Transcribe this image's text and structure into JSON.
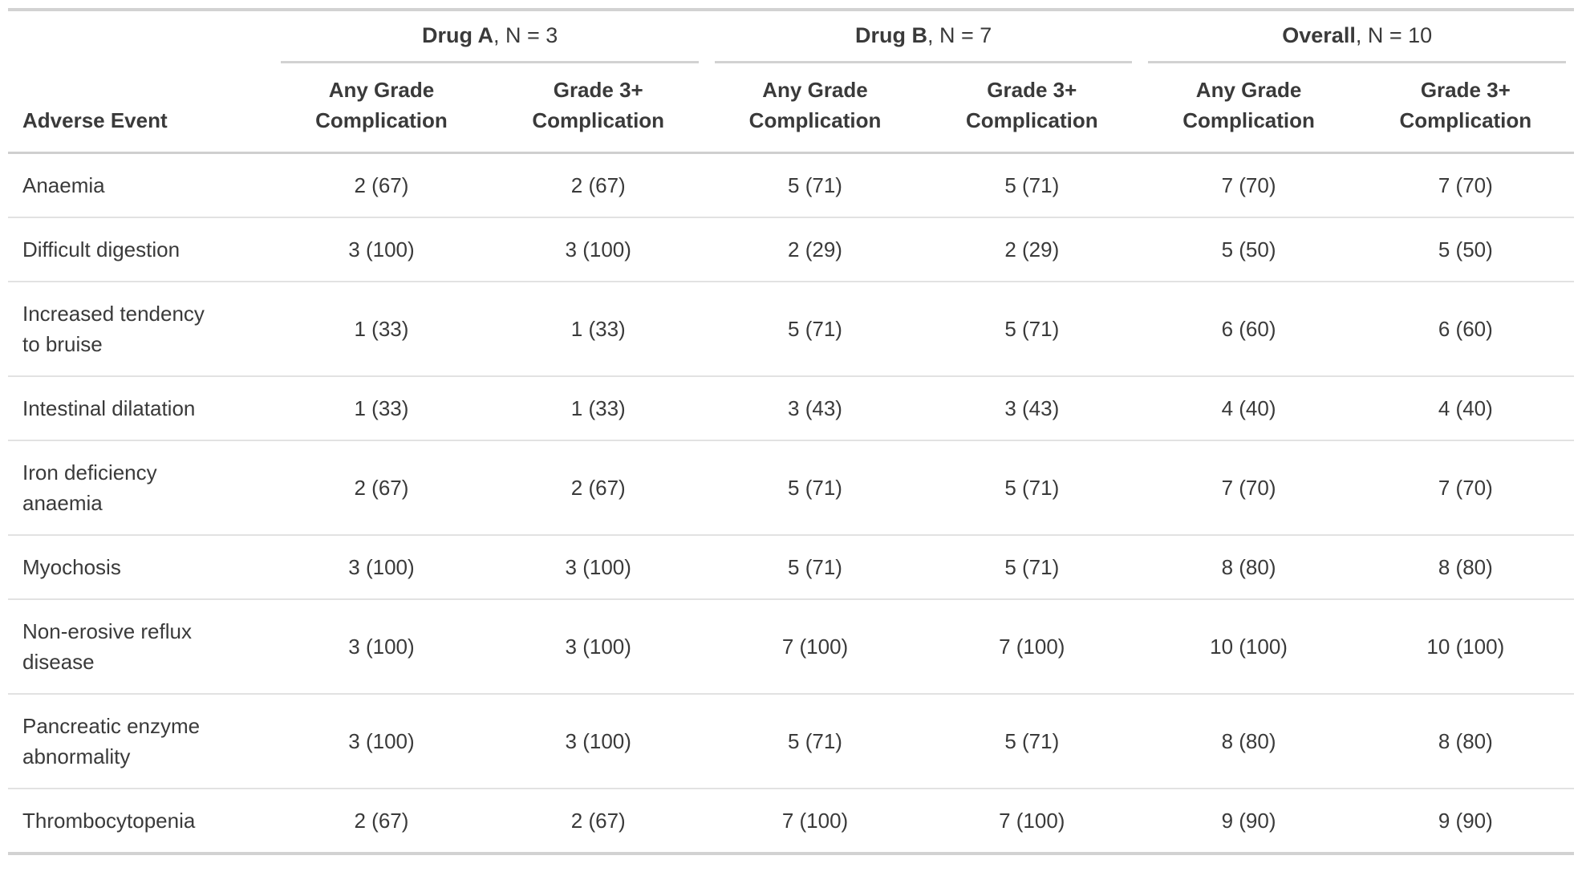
{
  "colors": {
    "background": "#ffffff",
    "text": "#3a3a3a",
    "border_strong": "#d2d2d2",
    "border_header": "#cfcfcf",
    "border_row": "#e2e2e2"
  },
  "chart_data": {
    "type": "table",
    "stub_header": "Adverse Event",
    "value_format": "n (%)",
    "spanners": [
      {
        "label": "Drug A",
        "suffix": ", N = 3",
        "columns": 2
      },
      {
        "label": "Drug B",
        "suffix": ", N = 7",
        "columns": 2
      },
      {
        "label": "Overall",
        "suffix": ", N = 10",
        "columns": 2
      }
    ],
    "columns": [
      {
        "line1": "Any Grade",
        "line2": "Complication"
      },
      {
        "line1": "Grade 3+",
        "line2": "Complication"
      },
      {
        "line1": "Any Grade",
        "line2": "Complication"
      },
      {
        "line1": "Grade 3+",
        "line2": "Complication"
      },
      {
        "line1": "Any Grade",
        "line2": "Complication"
      },
      {
        "line1": "Grade 3+",
        "line2": "Complication"
      }
    ],
    "rows": [
      {
        "label": "Anaemia",
        "values": [
          "2 (67)",
          "2 (67)",
          "5 (71)",
          "5 (71)",
          "7 (70)",
          "7 (70)"
        ]
      },
      {
        "label": "Difficult digestion",
        "values": [
          "3 (100)",
          "3 (100)",
          "2 (29)",
          "2 (29)",
          "5 (50)",
          "5 (50)"
        ]
      },
      {
        "label": "Increased tendency\nto bruise",
        "values": [
          "1 (33)",
          "1 (33)",
          "5 (71)",
          "5 (71)",
          "6 (60)",
          "6 (60)"
        ]
      },
      {
        "label": "Intestinal dilatation",
        "values": [
          "1 (33)",
          "1 (33)",
          "3 (43)",
          "3 (43)",
          "4 (40)",
          "4 (40)"
        ]
      },
      {
        "label": "Iron deficiency\nanaemia",
        "values": [
          "2 (67)",
          "2 (67)",
          "5 (71)",
          "5 (71)",
          "7 (70)",
          "7 (70)"
        ]
      },
      {
        "label": "Myochosis",
        "values": [
          "3 (100)",
          "3 (100)",
          "5 (71)",
          "5 (71)",
          "8 (80)",
          "8 (80)"
        ]
      },
      {
        "label": "Non-erosive reflux\ndisease",
        "values": [
          "3 (100)",
          "3 (100)",
          "7 (100)",
          "7 (100)",
          "10 (100)",
          "10 (100)"
        ]
      },
      {
        "label": "Pancreatic enzyme\nabnormality",
        "values": [
          "3 (100)",
          "3 (100)",
          "5 (71)",
          "5 (71)",
          "8 (80)",
          "8 (80)"
        ]
      },
      {
        "label": "Thrombocytopenia",
        "values": [
          "2 (67)",
          "2 (67)",
          "7 (100)",
          "7 (100)",
          "9 (90)",
          "9 (90)"
        ]
      }
    ]
  }
}
